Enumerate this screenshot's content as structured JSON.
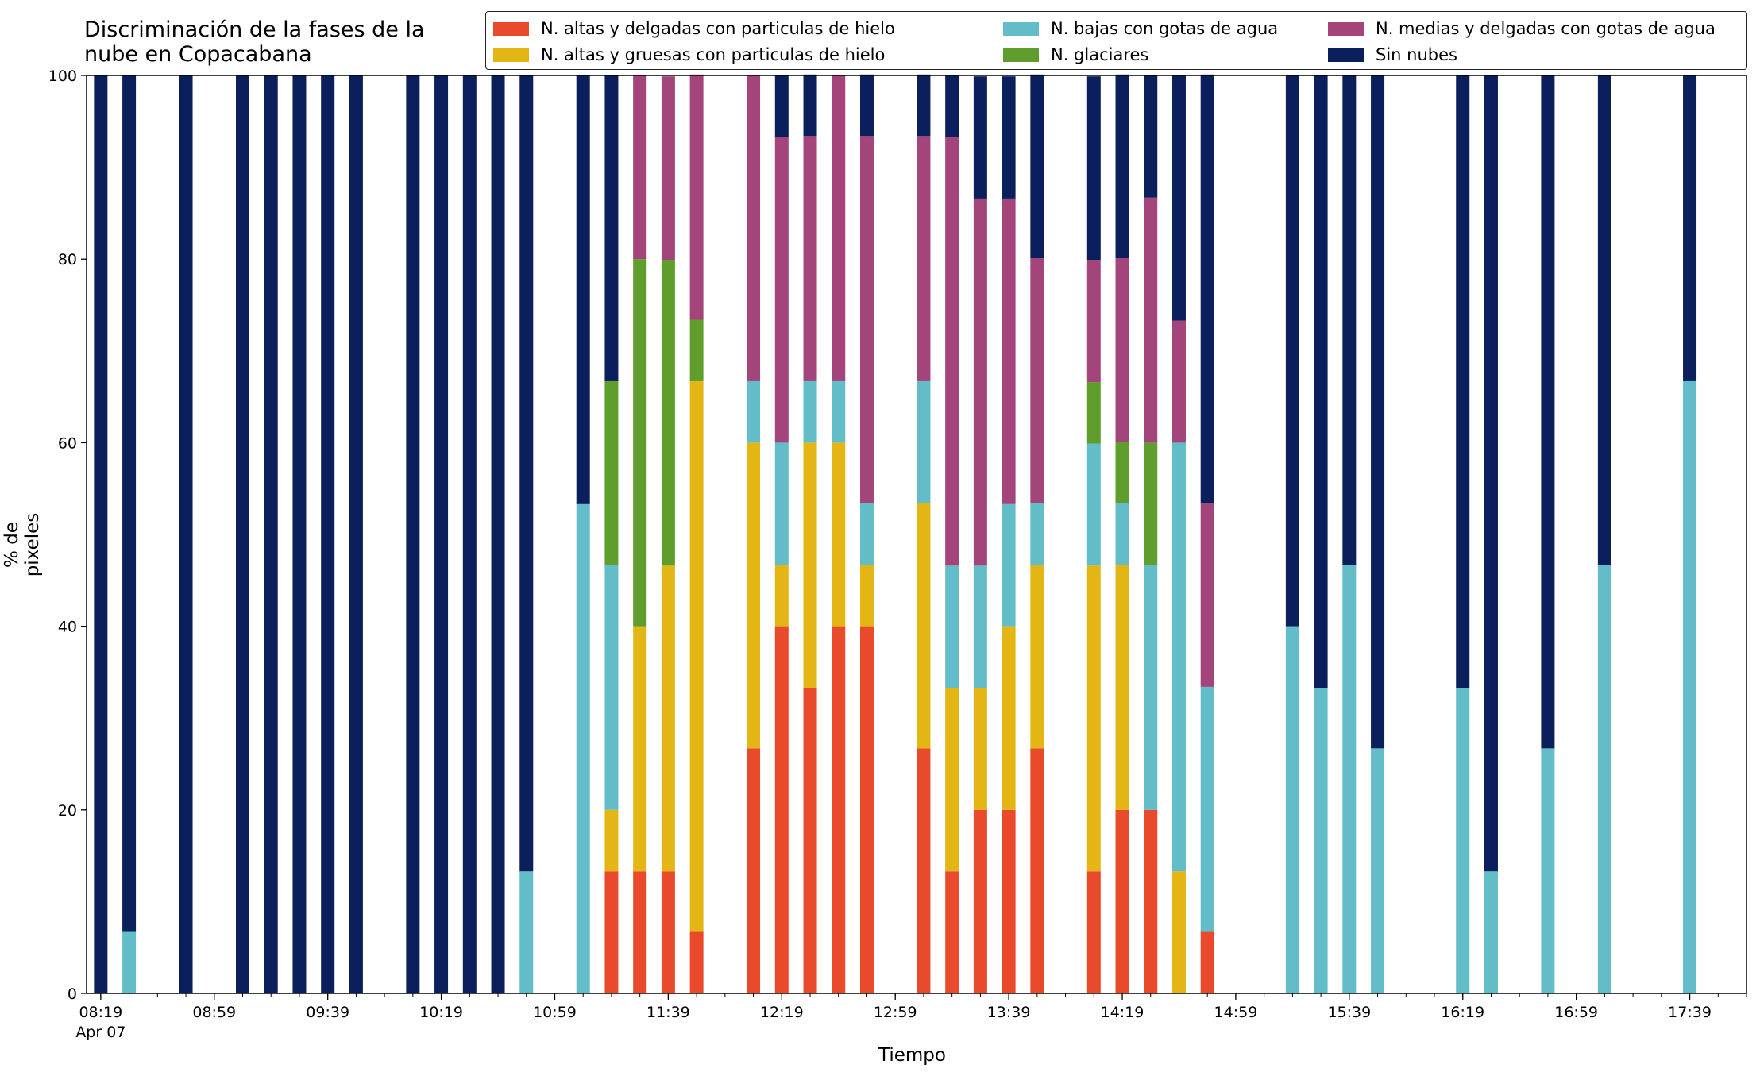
{
  "chart_data": {
    "type": "bar",
    "stacked": true,
    "title": "Discriminación de la fases de la\nnube en Copacabana",
    "xlabel": "Tiempo",
    "ylabel": "% de pixeles",
    "ylim": [
      0,
      100
    ],
    "yticks": [
      0,
      20,
      40,
      60,
      80,
      100
    ],
    "xlim": [
      "08:14",
      "17:59"
    ],
    "xticks": [
      {
        "time": "08:19",
        "label": "08:19",
        "sublabel": "Apr 07"
      },
      {
        "time": "08:59",
        "label": "08:59"
      },
      {
        "time": "09:39",
        "label": "09:39"
      },
      {
        "time": "10:19",
        "label": "10:19"
      },
      {
        "time": "10:59",
        "label": "10:59"
      },
      {
        "time": "11:39",
        "label": "11:39"
      },
      {
        "time": "12:19",
        "label": "12:19"
      },
      {
        "time": "12:59",
        "label": "12:59"
      },
      {
        "time": "13:39",
        "label": "13:39"
      },
      {
        "time": "14:19",
        "label": "14:19"
      },
      {
        "time": "14:59",
        "label": "14:59"
      },
      {
        "time": "15:39",
        "label": "15:39"
      },
      {
        "time": "16:19",
        "label": "16:19"
      },
      {
        "time": "16:59",
        "label": "16:59"
      },
      {
        "time": "17:39",
        "label": "17:39"
      }
    ],
    "minor_tick_interval_minutes": 10,
    "legend_position": "top-right",
    "legend_columns": 3,
    "legend_order": [
      0,
      1,
      2,
      3,
      4,
      5
    ],
    "series": [
      {
        "name": "N. altas y delgadas con particulas de hielo",
        "color": "#e84a2b"
      },
      {
        "name": "N. altas y gruesas con particulas de hielo",
        "color": "#e3b515"
      },
      {
        "name": "N. bajas con gotas de agua",
        "color": "#63bdc9"
      },
      {
        "name": "N. glaciares",
        "color": "#5f9e2c"
      },
      {
        "name": "N. medias y delgadas con gotas de agua",
        "color": "#a3457a"
      },
      {
        "name": "Sin nubes",
        "color": "#0b1f5c"
      }
    ],
    "stack_order": [
      0,
      1,
      2,
      3,
      4,
      5
    ],
    "x": [
      "08:19",
      "08:29",
      "08:49",
      "09:09",
      "09:19",
      "09:29",
      "09:39",
      "09:49",
      "10:09",
      "10:19",
      "10:29",
      "10:39",
      "10:49",
      "11:09",
      "11:19",
      "11:29",
      "11:39",
      "11:49",
      "12:09",
      "12:19",
      "12:29",
      "12:39",
      "12:49",
      "13:09",
      "13:19",
      "13:29",
      "13:39",
      "13:49",
      "14:09",
      "14:19",
      "14:29",
      "14:39",
      "14:49",
      "15:19",
      "15:29",
      "15:39",
      "15:49",
      "16:19",
      "16:29",
      "16:49",
      "17:09",
      "17:39"
    ],
    "values": [
      [
        0,
        0,
        0,
        0,
        0,
        100
      ],
      [
        0,
        0,
        6.7,
        0,
        0,
        93.3
      ],
      [
        0,
        0,
        0,
        0,
        0,
        100
      ],
      [
        0,
        0,
        0,
        0,
        0,
        100
      ],
      [
        0,
        0,
        0,
        0,
        0,
        100
      ],
      [
        0,
        0,
        0,
        0,
        0,
        100
      ],
      [
        0,
        0,
        0,
        0,
        0,
        100
      ],
      [
        0,
        0,
        0,
        0,
        0,
        100
      ],
      [
        0,
        0,
        0,
        0,
        0,
        100
      ],
      [
        0,
        0,
        0,
        0,
        0,
        100
      ],
      [
        0,
        0,
        0,
        0,
        0,
        100
      ],
      [
        0,
        0,
        0,
        0,
        0,
        100
      ],
      [
        0,
        0,
        13.3,
        0,
        0,
        86.7
      ],
      [
        0,
        0,
        53.3,
        0,
        0,
        46.7
      ],
      [
        13.3,
        6.7,
        26.7,
        20,
        0,
        33.3
      ],
      [
        13.3,
        26.7,
        0,
        40,
        20,
        0
      ],
      [
        13.3,
        33.3,
        0,
        33.3,
        20,
        0
      ],
      [
        6.7,
        60,
        0,
        6.7,
        26.7,
        0
      ],
      [
        26.7,
        33.3,
        6.7,
        0,
        33.3,
        0
      ],
      [
        40,
        6.7,
        13.3,
        0,
        33.3,
        6.7
      ],
      [
        33.3,
        26.7,
        6.7,
        0,
        26.7,
        6.7
      ],
      [
        40,
        20,
        6.7,
        0,
        33.3,
        0
      ],
      [
        40,
        6.7,
        6.7,
        0,
        40,
        6.7
      ],
      [
        26.7,
        26.7,
        13.3,
        0,
        26.7,
        6.7
      ],
      [
        13.3,
        20,
        13.3,
        0,
        46.7,
        6.7
      ],
      [
        20,
        13.3,
        13.3,
        0,
        40,
        13.3
      ],
      [
        20,
        20,
        13.3,
        0,
        33.3,
        13.3
      ],
      [
        26.7,
        20,
        6.7,
        0,
        26.7,
        20
      ],
      [
        13.3,
        33.3,
        13.3,
        6.7,
        13.3,
        20
      ],
      [
        20,
        26.7,
        6.7,
        6.7,
        20,
        20
      ],
      [
        20,
        0,
        26.7,
        13.3,
        26.7,
        13.3
      ],
      [
        0,
        13.3,
        46.7,
        0,
        13.3,
        26.7
      ],
      [
        6.7,
        0,
        26.7,
        0,
        20,
        46.7
      ],
      [
        0,
        0,
        40,
        0,
        0,
        60
      ],
      [
        0,
        0,
        33.3,
        0,
        0,
        66.7
      ],
      [
        0,
        0,
        46.7,
        0,
        0,
        53.3
      ],
      [
        0,
        0,
        26.7,
        0,
        0,
        73.3
      ],
      [
        0,
        0,
        33.3,
        0,
        0,
        66.7
      ],
      [
        0,
        0,
        13.3,
        0,
        0,
        86.7
      ],
      [
        0,
        0,
        26.7,
        0,
        0,
        73.3
      ],
      [
        0,
        0,
        46.7,
        0,
        0,
        53.3
      ],
      [
        0,
        0,
        66.7,
        0,
        0,
        33.3
      ]
    ]
  }
}
